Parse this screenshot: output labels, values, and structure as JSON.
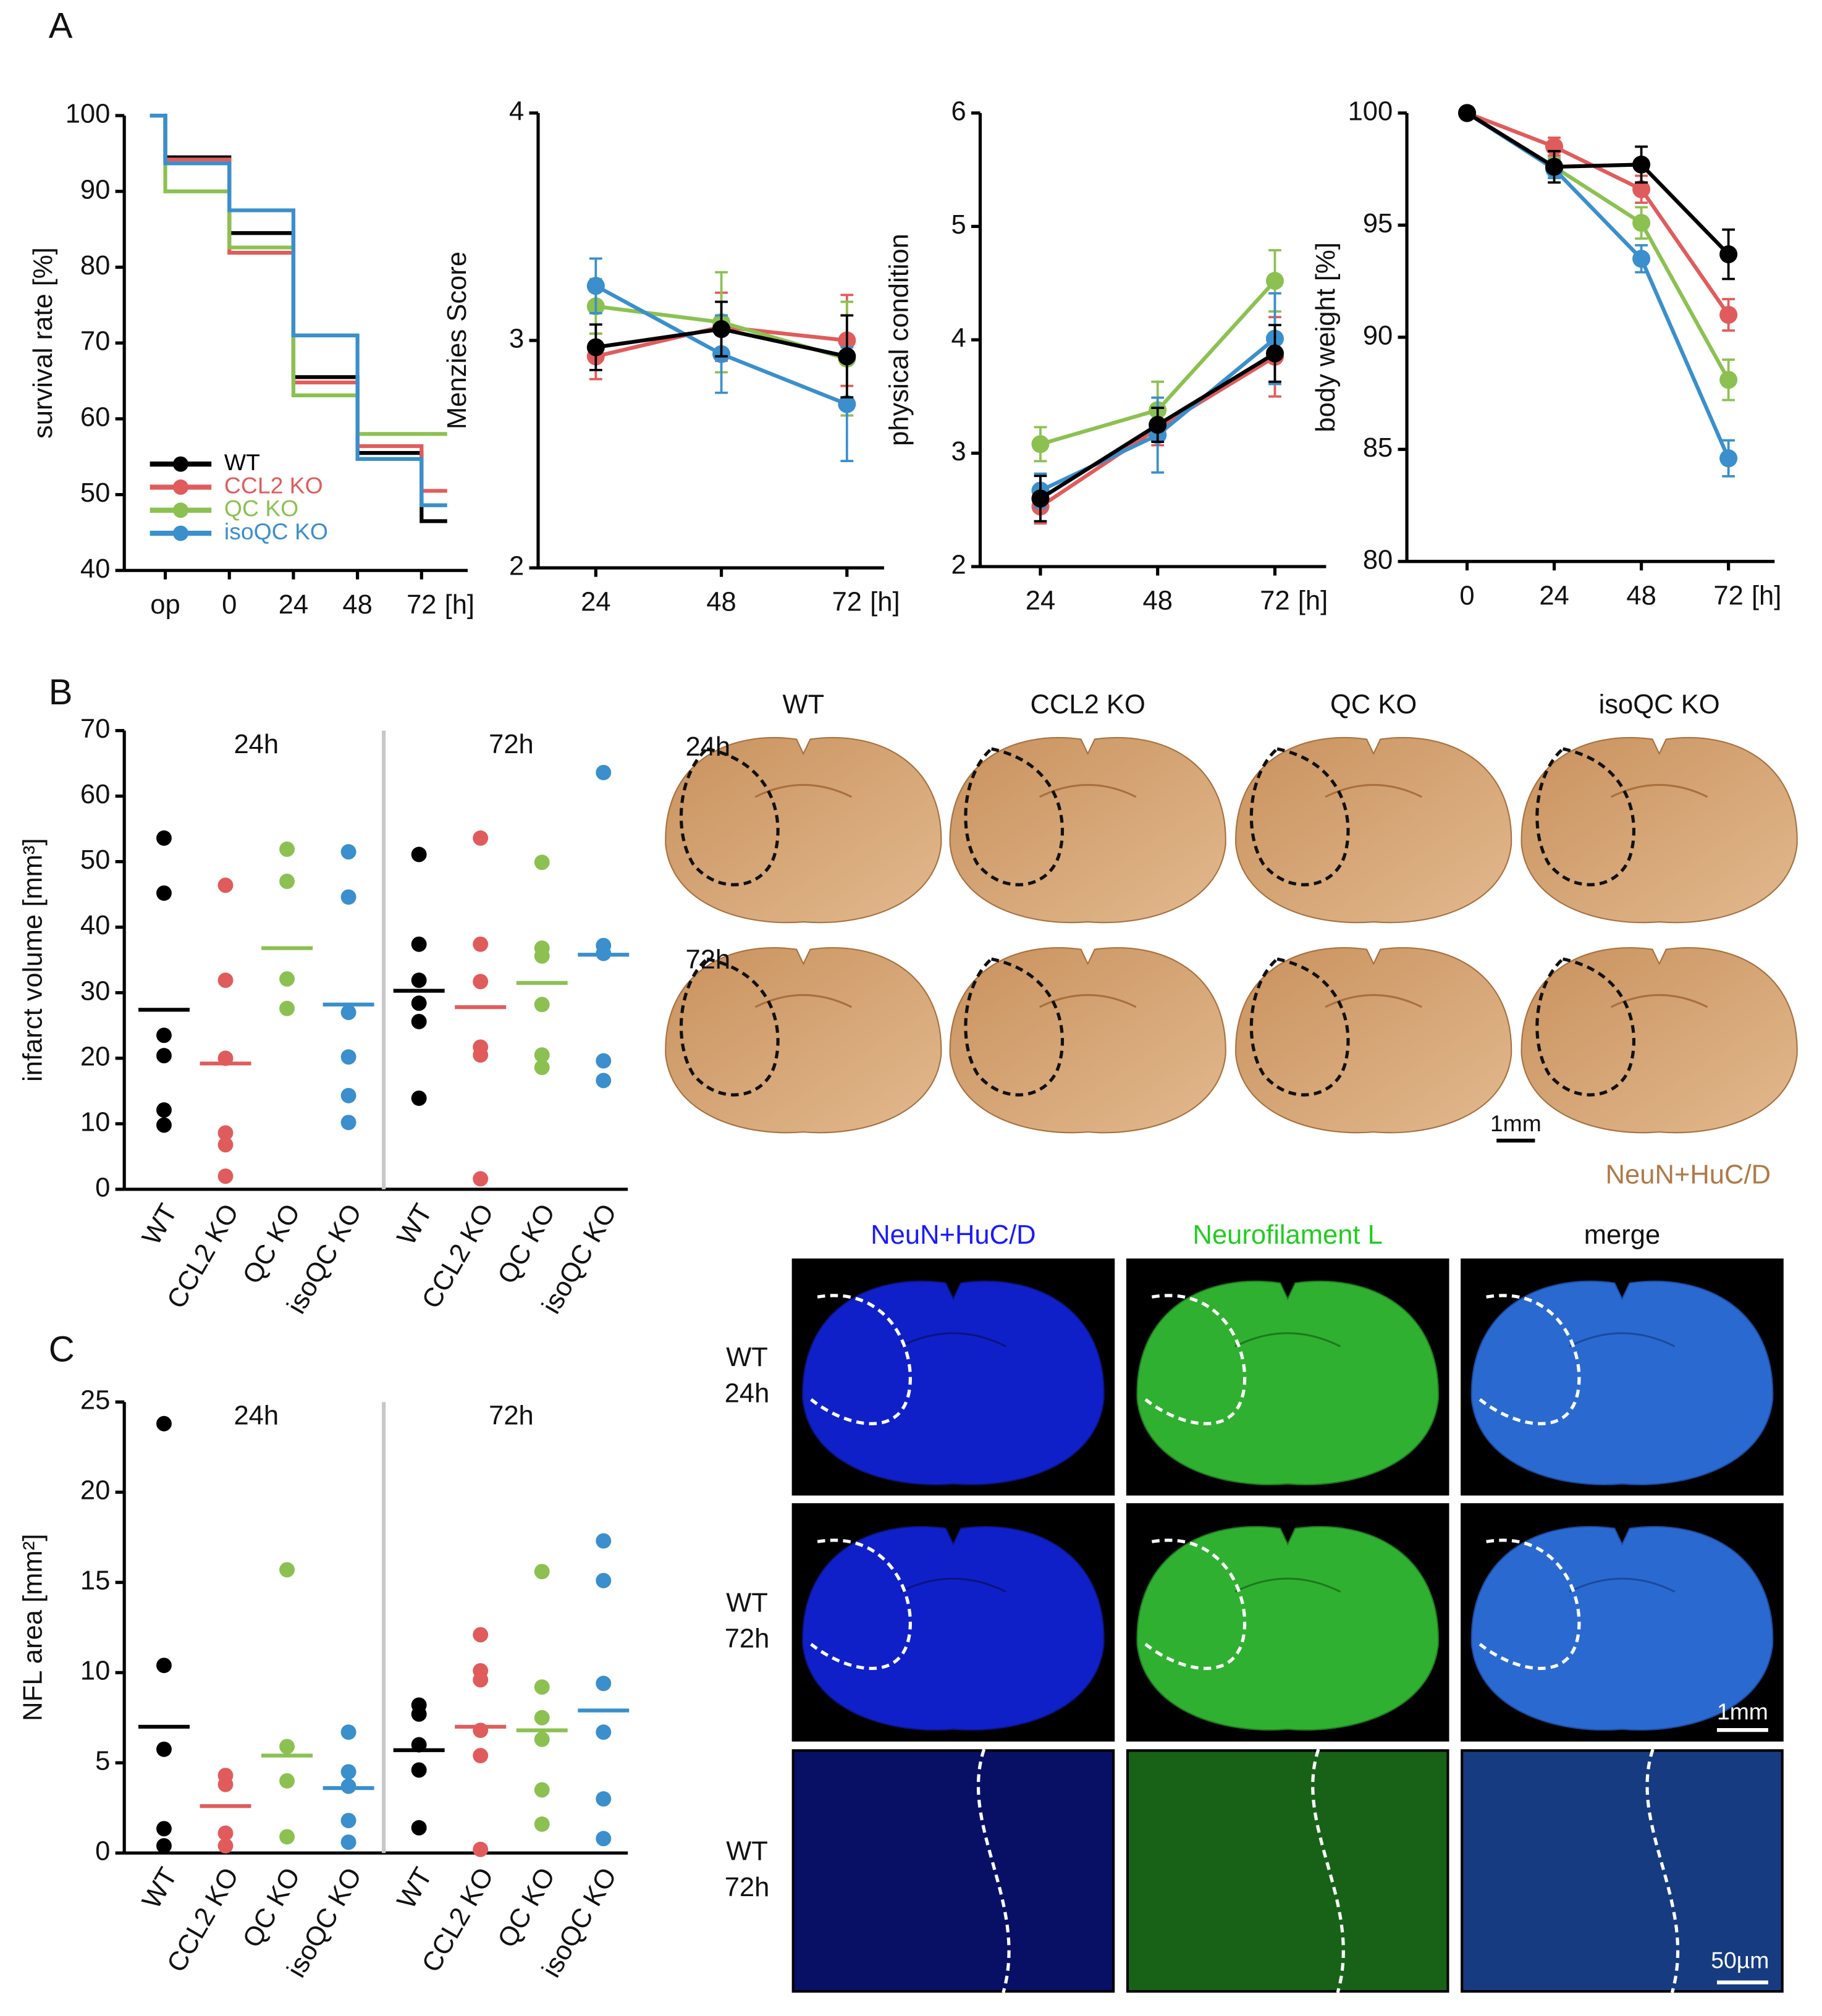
{
  "figure": {
    "panel_labels": [
      "A",
      "B",
      "C"
    ],
    "brightfield": {
      "columns": [
        "WT",
        "CCL2 KO",
        "QC KO",
        "isoQC KO"
      ],
      "rows": [
        "24h",
        "72h"
      ],
      "scale": "1mm",
      "stain": "NeuN+HuC/D"
    },
    "fluorescence": {
      "columns": [
        "NeuN+HuC/D",
        "Neurofilament L",
        "merge"
      ],
      "rows": [
        [
          "WT",
          "24h"
        ],
        [
          "WT",
          "72h"
        ],
        [
          "WT",
          "72h"
        ]
      ],
      "scale_bars": [
        "1mm",
        "50µm"
      ]
    }
  },
  "chart_data": [
    {
      "type": "step",
      "ylabel": "survival rate [%]",
      "xlabel": "[h]",
      "categories": [
        "op",
        "0",
        "24",
        "48",
        "72"
      ],
      "ylim": [
        40,
        100
      ],
      "yticks": [
        40,
        50,
        60,
        70,
        80,
        90,
        100
      ],
      "initial": 100,
      "series": [
        {
          "name": "WT",
          "color": "#000000",
          "values": [
            94.5,
            84.5,
            65.5,
            55.5,
            46.5
          ]
        },
        {
          "name": "CCL2 KO",
          "color": "#e05c5c",
          "values": [
            94.2,
            81.9,
            64.8,
            56.4,
            50.5
          ]
        },
        {
          "name": "QC KO",
          "color": "#8cc152",
          "values": [
            90,
            82.6,
            63.1,
            58,
            58
          ]
        },
        {
          "name": "isoQC KO",
          "color": "#3a8fcc",
          "values": [
            93.7,
            87.5,
            71,
            54.7,
            48.6
          ]
        }
      ]
    },
    {
      "type": "line",
      "ylabel": "Menzies Score",
      "xlabel": "[h]",
      "categories": [
        "24",
        "48",
        "72"
      ],
      "ylim": [
        2,
        4
      ],
      "yticks": [
        2,
        3,
        4
      ],
      "series": [
        {
          "color": "#e05c5c",
          "values": [
            2.93,
            3.06,
            3.0
          ],
          "errors": [
            0.1,
            0.15,
            0.2
          ]
        },
        {
          "color": "#8cc152",
          "values": [
            3.15,
            3.08,
            2.92
          ],
          "errors": [
            0.12,
            0.22,
            0.25
          ]
        },
        {
          "color": "#3a8fcc",
          "values": [
            3.24,
            2.94,
            2.72
          ],
          "errors": [
            0.12,
            0.17,
            0.25
          ]
        },
        {
          "color": "#000000",
          "values": [
            2.97,
            3.05,
            2.93
          ],
          "errors": [
            0.1,
            0.12,
            0.18
          ]
        }
      ]
    },
    {
      "type": "line",
      "ylabel": "physical condition",
      "xlabel": "[h]",
      "categories": [
        "24",
        "48",
        "72"
      ],
      "ylim": [
        2,
        6
      ],
      "yticks": [
        2,
        3,
        4,
        5,
        6
      ],
      "series": [
        {
          "color": "#e05c5c",
          "values": [
            2.53,
            3.22,
            3.85
          ],
          "errors": [
            0.15,
            0.15,
            0.35
          ]
        },
        {
          "color": "#8cc152",
          "values": [
            3.08,
            3.38,
            4.52
          ],
          "errors": [
            0.15,
            0.25,
            0.27
          ]
        },
        {
          "color": "#3a8fcc",
          "values": [
            2.67,
            3.16,
            4.01
          ],
          "errors": [
            0.15,
            0.33,
            0.4
          ]
        },
        {
          "color": "#000000",
          "values": [
            2.6,
            3.25,
            3.88
          ],
          "errors": [
            0.2,
            0.15,
            0.25
          ]
        }
      ]
    },
    {
      "type": "line",
      "ylabel": "body weight [%]",
      "xlabel": "[h]",
      "categories": [
        "0",
        "24",
        "48",
        "72"
      ],
      "ylim": [
        80,
        100
      ],
      "yticks": [
        80,
        85,
        90,
        95,
        100
      ],
      "series": [
        {
          "color": "#e05c5c",
          "values": [
            100,
            98.5,
            96.6,
            91
          ],
          "errors": [
            0,
            0.4,
            0.6,
            0.7
          ]
        },
        {
          "color": "#8cc152",
          "values": [
            100,
            97.6,
            95.1,
            88.1
          ],
          "errors": [
            0,
            0.4,
            0.7,
            0.9
          ]
        },
        {
          "color": "#3a8fcc",
          "values": [
            100,
            97.5,
            93.5,
            84.6
          ],
          "errors": [
            0,
            0.4,
            0.6,
            0.8
          ]
        },
        {
          "color": "#000000",
          "values": [
            100,
            97.6,
            97.7,
            93.7
          ],
          "errors": [
            0,
            0.7,
            0.8,
            1.1
          ]
        }
      ]
    },
    {
      "type": "strip",
      "ylabel": "infarct volume [mm³]",
      "groups": [
        "24h",
        "72h"
      ],
      "categories": [
        "WT",
        "CCL2 KO",
        "QC KO",
        "isoQC KO",
        "WT",
        "CCL2 KO",
        "QC KO",
        "isoQC KO"
      ],
      "colors": [
        "#000000",
        "#e05c5c",
        "#8cc152",
        "#3a8fcc",
        "#000000",
        "#e05c5c",
        "#8cc152",
        "#3a8fcc"
      ],
      "ylim": [
        0,
        70
      ],
      "yticks": [
        0,
        10,
        20,
        30,
        40,
        50,
        60,
        70
      ],
      "points": [
        [
          53.6,
          45.2,
          23.5,
          20.4,
          12.1,
          9.8
        ],
        [
          46.4,
          31.9,
          20,
          8.6,
          6.8,
          2
        ],
        [
          51.9,
          47,
          32.1,
          27.6
        ],
        [
          51.5,
          44.6,
          27,
          20.2,
          14.3,
          10.2
        ],
        [
          51.1,
          37.4,
          31.9,
          28.4,
          25.6,
          13.9
        ],
        [
          53.6,
          37.4,
          31.7,
          21.7,
          20.5,
          1.6
        ],
        [
          49.9,
          36.8,
          35.6,
          28.2,
          20.5,
          18.6
        ],
        [
          63.6,
          37.2,
          36,
          19.6,
          16.6
        ]
      ],
      "means": [
        27.4,
        19.2,
        36.8,
        28.2,
        30.3,
        27.8,
        31.5,
        35.8
      ]
    },
    {
      "type": "strip",
      "ylabel": "NFL area [mm²]",
      "groups": [
        "24h",
        "72h"
      ],
      "categories": [
        "WT",
        "CCL2 KO",
        "QC KO",
        "isoQC KO",
        "WT",
        "CCL2 KO",
        "QC KO",
        "isoQC KO"
      ],
      "colors": [
        "#000000",
        "#e05c5c",
        "#8cc152",
        "#3a8fcc",
        "#000000",
        "#e05c5c",
        "#8cc152",
        "#3a8fcc"
      ],
      "ylim": [
        0,
        25
      ],
      "yticks": [
        0,
        5,
        10,
        15,
        20,
        25
      ],
      "points": [
        [
          23.8,
          10.4,
          5.75,
          1.35,
          0.4
        ],
        [
          4.3,
          3.8,
          1.1,
          0.4
        ],
        [
          15.7,
          5.9,
          4.0,
          0.9
        ],
        [
          6.7,
          4.5,
          3.7,
          1.8,
          0.6
        ],
        [
          8.2,
          7.7,
          6.0,
          4.6,
          1.4
        ],
        [
          12.1,
          10.1,
          9.6,
          6.8,
          5.4,
          0.2
        ],
        [
          15.6,
          9.2,
          7.5,
          6.3,
          3.5,
          1.6
        ],
        [
          17.3,
          15.1,
          9.4,
          6.7,
          3.0,
          0.8
        ]
      ],
      "means": [
        7.0,
        2.6,
        5.4,
        3.6,
        5.7,
        7.0,
        6.8,
        7.9
      ]
    }
  ]
}
